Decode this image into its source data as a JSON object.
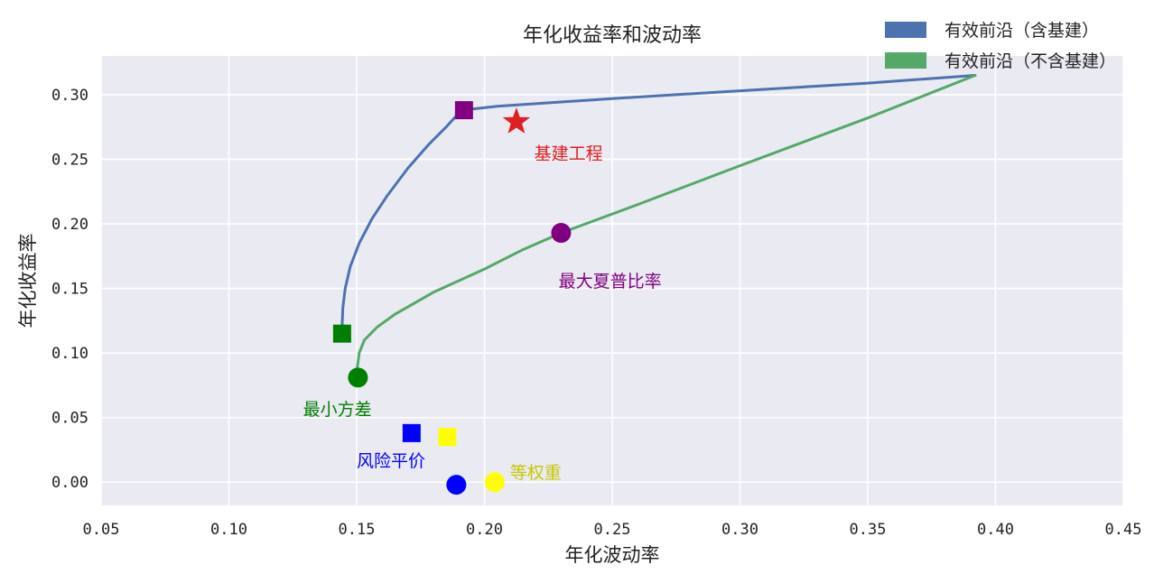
{
  "chart_data": {
    "type": "line",
    "title": "年化收益率和波动率",
    "xlabel": "年化波动率",
    "ylabel": "年化收益率",
    "xlim": [
      0.05,
      0.45
    ],
    "ylim": [
      -0.018,
      0.33
    ],
    "xticks": [
      0.05,
      0.1,
      0.15,
      0.2,
      0.25,
      0.3,
      0.35,
      0.4,
      0.45
    ],
    "xtick_labels": [
      "0.05",
      "0.10",
      "0.15",
      "0.20",
      "0.25",
      "0.30",
      "0.35",
      "0.40",
      "0.45"
    ],
    "yticks": [
      0.0,
      0.05,
      0.1,
      0.15,
      0.2,
      0.25,
      0.3
    ],
    "ytick_labels": [
      "0.00",
      "0.05",
      "0.10",
      "0.15",
      "0.20",
      "0.25",
      "0.30"
    ],
    "grid": true,
    "legend_position": "top-right",
    "series": [
      {
        "name": "有效前沿（含基建）",
        "color": "#4c72b0",
        "x": [
          0.1443,
          0.1446,
          0.1455,
          0.1475,
          0.151,
          0.156,
          0.162,
          0.17,
          0.178,
          0.185,
          0.191,
          0.205,
          0.25,
          0.3,
          0.35,
          0.392
        ],
        "y": [
          0.122,
          0.135,
          0.15,
          0.167,
          0.185,
          0.204,
          0.222,
          0.243,
          0.261,
          0.275,
          0.288,
          0.291,
          0.297,
          0.303,
          0.309,
          0.315
        ]
      },
      {
        "name": "有效前沿（不含基建）",
        "color": "#55a868",
        "x": [
          0.15,
          0.151,
          0.153,
          0.158,
          0.165,
          0.18,
          0.2,
          0.215,
          0.23,
          0.26,
          0.3,
          0.35,
          0.392
        ],
        "y": [
          0.085,
          0.1,
          0.11,
          0.12,
          0.13,
          0.147,
          0.165,
          0.18,
          0.193,
          0.215,
          0.245,
          0.282,
          0.315
        ]
      }
    ],
    "markers": [
      {
        "shape": "square",
        "color": "#800080",
        "x": 0.192,
        "y": 0.288
      },
      {
        "shape": "square",
        "color": "#008000",
        "x": 0.1443,
        "y": 0.115
      },
      {
        "shape": "square",
        "color": "#0000ff",
        "x": 0.1715,
        "y": 0.038
      },
      {
        "shape": "square",
        "color": "#ffff00",
        "x": 0.1855,
        "y": 0.035
      },
      {
        "shape": "star",
        "color": "#e02020",
        "x": 0.2125,
        "y": 0.279
      },
      {
        "shape": "circle",
        "color": "#800080",
        "x": 0.23,
        "y": 0.193
      },
      {
        "shape": "circle",
        "color": "#008000",
        "x": 0.1505,
        "y": 0.081
      },
      {
        "shape": "circle",
        "color": "#0000ff",
        "x": 0.189,
        "y": -0.002
      },
      {
        "shape": "circle",
        "color": "#ffff00",
        "x": 0.204,
        "y": 0.0
      }
    ],
    "annotations": [
      {
        "text": "基建工程",
        "color": "#e02020",
        "x": 0.2195,
        "y": 0.25
      },
      {
        "text": "最大夏普比率",
        "color": "#800080",
        "x": 0.229,
        "y": 0.151
      },
      {
        "text": "最小方差",
        "color": "#008000",
        "x": 0.129,
        "y": 0.052
      },
      {
        "text": "风险平价",
        "color": "#0000ff",
        "x": 0.15,
        "y": 0.012
      },
      {
        "text": "等权重",
        "color": "#c8c800",
        "x": 0.21,
        "y": 0.003
      }
    ]
  }
}
